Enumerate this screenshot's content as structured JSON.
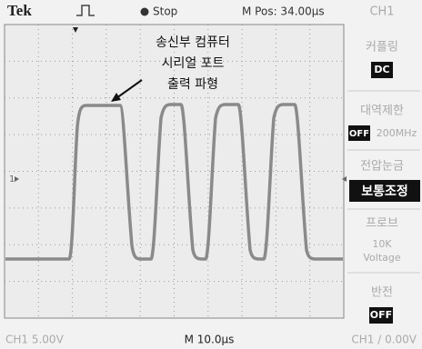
{
  "header": {
    "brand": "Tek",
    "status": "Stop",
    "position": "M Pos: 34.00μs",
    "channel": "CH1"
  },
  "screen": {
    "channel_marker": "1"
  },
  "annotation": {
    "lines": [
      "송신부 컴퓨터",
      "시리얼 포트",
      "출력 파형"
    ]
  },
  "menu": {
    "coupling": {
      "label": "커플링",
      "value": "DC"
    },
    "bandwidth": {
      "label": "대역제한",
      "value": "OFF",
      "extra": "200MHz"
    },
    "volts": {
      "label": "전압눈금",
      "value": "보통조정"
    },
    "probe": {
      "label": "프로브",
      "lines": [
        "10K",
        "Voltage"
      ]
    },
    "invert": {
      "label": "반전",
      "value": "OFF"
    }
  },
  "footer": {
    "channel_scale": "CH1 5.00V",
    "time_scale": "M 10.0μs",
    "trigger": "CH1 / 0.00V"
  }
}
